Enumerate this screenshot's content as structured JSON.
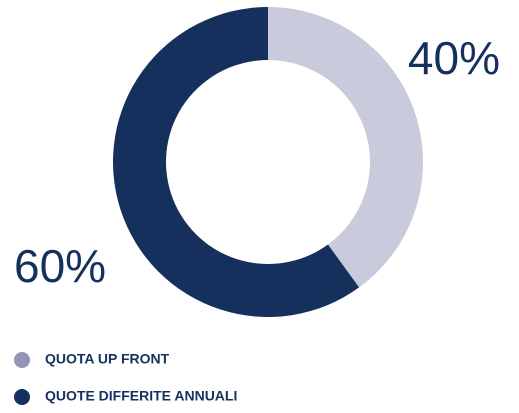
{
  "chart_data": {
    "type": "donut",
    "categories": [
      "QUOTA UP FRONT",
      "QUOTE DIFFERITE ANNUALI"
    ],
    "values": [
      40,
      60
    ],
    "value_labels": [
      "40%",
      "60%"
    ],
    "colors": [
      "#c9cadc",
      "#16305e"
    ],
    "legend_colors": [
      "#9394b6",
      "#16305e"
    ],
    "legend": "bottom-left"
  }
}
